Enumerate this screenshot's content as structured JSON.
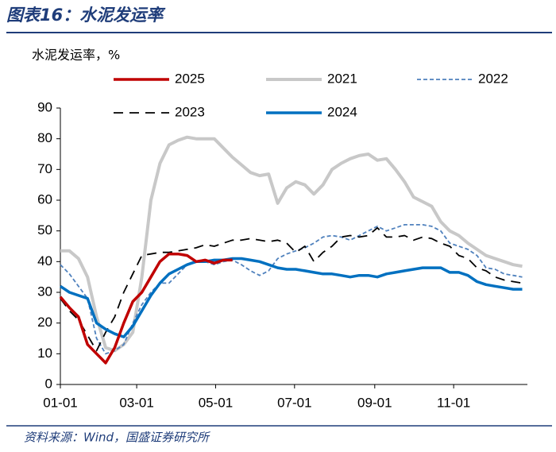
{
  "chart_data": {
    "type": "line",
    "title": "图表16：水泥发运率",
    "y_label": "水泥发运率，%",
    "source": "资料来源：Wind，国盛证券研究所",
    "x": [
      0,
      7,
      14,
      21,
      28,
      35,
      42,
      49,
      56,
      63,
      70,
      77,
      84,
      91,
      98,
      105,
      112,
      119,
      126,
      133,
      140,
      147,
      154,
      161,
      168,
      175,
      182,
      189,
      196,
      203,
      210,
      217,
      224,
      231,
      238,
      245,
      252,
      259,
      266,
      273,
      280,
      287,
      294,
      301,
      308,
      315,
      322,
      329,
      336,
      343,
      350,
      357
    ],
    "xlim": [
      0,
      361
    ],
    "xticks": [
      {
        "value": 0,
        "label": "01-01"
      },
      {
        "value": 59,
        "label": "03-01"
      },
      {
        "value": 120,
        "label": "05-01"
      },
      {
        "value": 181,
        "label": "07-01"
      },
      {
        "value": 243,
        "label": "09-01"
      },
      {
        "value": 304,
        "label": "11-01"
      }
    ],
    "ylim": [
      0,
      90
    ],
    "yticks": [
      0,
      10,
      20,
      30,
      40,
      50,
      60,
      70,
      80,
      90
    ],
    "series": [
      {
        "name": "2025",
        "color": "#c00000",
        "line_style": "solid",
        "values": [
          28.5,
          25,
          22,
          13,
          10,
          7,
          12,
          20,
          27,
          30,
          35,
          40,
          42.5,
          42.5,
          42,
          40,
          40.5,
          39.5,
          40.5,
          40.5,
          null,
          null,
          null,
          null,
          null,
          null,
          null,
          null,
          null,
          null,
          null,
          null,
          null,
          null,
          null,
          null,
          null,
          null,
          null,
          null,
          null,
          null,
          null,
          null,
          null,
          null,
          null,
          null,
          null,
          null,
          null,
          null
        ]
      },
      {
        "name": "2021",
        "color": "#c8c8c8",
        "line_style": "solid",
        "values": [
          43.5,
          43.5,
          41,
          35,
          22,
          12,
          11,
          13,
          17,
          35,
          60,
          72,
          78,
          79.5,
          80.5,
          80,
          80,
          80,
          77,
          74,
          71.5,
          69,
          68,
          68.5,
          59,
          64,
          66,
          65,
          62,
          65,
          70,
          72,
          73.5,
          74.5,
          75,
          73,
          73.5,
          70,
          66,
          61,
          59.5,
          58,
          53,
          50,
          48.5,
          46,
          44,
          42,
          41,
          40,
          39,
          38.5
        ]
      },
      {
        "name": "2022",
        "color": "#4f81bd",
        "line_style": "dotted",
        "values": [
          39,
          36,
          32,
          28,
          15,
          10,
          11,
          13,
          20,
          26,
          30,
          33,
          33,
          36,
          39,
          40,
          40,
          39,
          40,
          40.5,
          39,
          37,
          35.5,
          37,
          41,
          42.5,
          43.5,
          44.5,
          46,
          48,
          48.5,
          48,
          47,
          48.5,
          50,
          51.5,
          50,
          51,
          52,
          52,
          52,
          51.5,
          50,
          46,
          45,
          44,
          42,
          38,
          37.5,
          36,
          35.5,
          35
        ]
      },
      {
        "name": "2023",
        "color": "#000000",
        "line_style": "dashed",
        "values": [
          28,
          24,
          21,
          16,
          11,
          17,
          22,
          30,
          36,
          42,
          42.5,
          43,
          43,
          43.5,
          44,
          44.5,
          45.5,
          45,
          46,
          47,
          47,
          47.5,
          47,
          46.5,
          47,
          46,
          43,
          45,
          40,
          43,
          45,
          48,
          48.5,
          48,
          48.5,
          51,
          48,
          48,
          48.5,
          47,
          48,
          47.5,
          46,
          45,
          42,
          41,
          38,
          37,
          35,
          34,
          33.5,
          33
        ]
      },
      {
        "name": "2024",
        "color": "#0070c0",
        "line_style": "solid",
        "values": [
          32,
          30,
          29,
          28,
          20,
          18,
          16.5,
          15.5,
          19,
          24,
          29,
          33,
          36,
          37.5,
          39,
          40,
          40,
          40.5,
          40.5,
          41,
          41,
          40.5,
          40,
          39,
          38,
          37.5,
          37.5,
          37,
          36.5,
          36,
          36,
          35.5,
          35,
          35.5,
          35.5,
          35,
          36,
          36.5,
          37,
          37.5,
          38,
          38,
          38,
          36.5,
          36.5,
          35.5,
          33.5,
          32.5,
          32,
          31.5,
          31,
          31
        ]
      }
    ]
  }
}
